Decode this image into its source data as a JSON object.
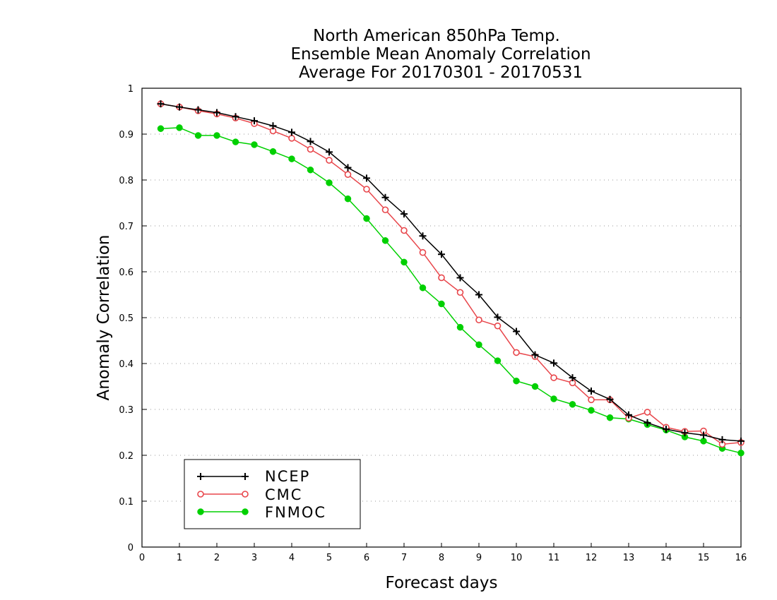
{
  "chart_data": {
    "type": "line",
    "title_lines": [
      "North American 850hPa Temp.",
      "Ensemble Mean Anomaly Correlation",
      "Average For 20170301 - 20170531"
    ],
    "xlabel": "Forecast days",
    "ylabel": "Anomaly Correlation",
    "xlim": [
      0,
      16
    ],
    "ylim": [
      0,
      1
    ],
    "x_ticks": [
      "0",
      "1",
      "2",
      "3",
      "4",
      "5",
      "6",
      "7",
      "8",
      "9",
      "10",
      "11",
      "12",
      "13",
      "14",
      "15",
      "16"
    ],
    "y_ticks": [
      "0",
      "0.1",
      "0.2",
      "0.3",
      "0.4",
      "0.5",
      "0.6",
      "0.7",
      "0.8",
      "0.9",
      "1"
    ],
    "grid": "horizontal dotted",
    "legend_position": "bottom-left",
    "x": [
      0.5,
      1,
      1.5,
      2,
      2.5,
      3,
      3.5,
      4,
      4.5,
      5,
      5.5,
      6,
      6.5,
      7,
      7.5,
      8,
      8.5,
      9,
      9.5,
      10,
      10.5,
      11,
      11.5,
      12,
      12.5,
      13,
      13.5,
      14,
      14.5,
      15,
      15.5,
      16
    ],
    "series": [
      {
        "name": "NCEP",
        "color": "#000000",
        "marker": "plus",
        "values": [
          0.966,
          0.959,
          0.953,
          0.947,
          0.938,
          0.929,
          0.918,
          0.904,
          0.884,
          0.861,
          0.827,
          0.804,
          0.762,
          0.726,
          0.678,
          0.638,
          0.587,
          0.55,
          0.501,
          0.47,
          0.419,
          0.401,
          0.369,
          0.34,
          0.322,
          0.288,
          0.271,
          0.257,
          0.249,
          0.244,
          0.234,
          0.231
        ]
      },
      {
        "name": "CMC",
        "color": "#e8464b",
        "marker": "open-circle",
        "values": [
          0.966,
          0.959,
          0.951,
          0.944,
          0.935,
          0.923,
          0.907,
          0.891,
          0.867,
          0.843,
          0.812,
          0.78,
          0.735,
          0.69,
          0.642,
          0.587,
          0.555,
          0.495,
          0.482,
          0.424,
          0.415,
          0.369,
          0.358,
          0.321,
          0.321,
          0.281,
          0.294,
          0.261,
          0.252,
          0.253,
          0.224,
          0.228
        ]
      },
      {
        "name": "FNMOC",
        "color": "#00d000",
        "marker": "filled-circle",
        "values": [
          0.912,
          0.914,
          0.897,
          0.897,
          0.883,
          0.877,
          0.862,
          0.846,
          0.822,
          0.794,
          0.759,
          0.716,
          0.668,
          0.621,
          0.565,
          0.53,
          0.479,
          0.441,
          0.406,
          0.362,
          0.35,
          0.323,
          0.311,
          0.298,
          0.282,
          0.279,
          0.267,
          0.255,
          0.24,
          0.231,
          0.215,
          0.205
        ]
      }
    ]
  }
}
